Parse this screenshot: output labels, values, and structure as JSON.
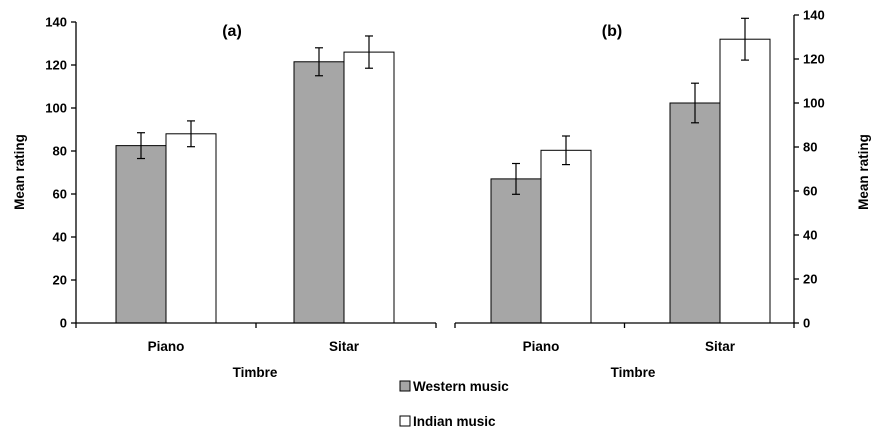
{
  "chart_data": [
    {
      "type": "bar",
      "panel_label": "(a)",
      "categories": [
        "Piano",
        "Sitar"
      ],
      "series": [
        {
          "name": "Western music",
          "values": [
            82.5,
            121.5
          ],
          "errors": [
            6,
            6.5
          ],
          "color": "#a6a6a6"
        },
        {
          "name": "Indian music",
          "values": [
            88,
            126
          ],
          "errors": [
            6,
            7.5
          ],
          "color": "#ffffff"
        }
      ],
      "xlabel": "Timbre",
      "ylabel": "Mean rating",
      "ylim": [
        0,
        140
      ],
      "yticks": [
        "0",
        "20",
        "40",
        "60",
        "80",
        "100",
        "120",
        "140"
      ],
      "y_axis_side": "left",
      "grid": false
    },
    {
      "type": "bar",
      "panel_label": "(b)",
      "categories": [
        "Piano",
        "Sitar"
      ],
      "series": [
        {
          "name": "Western music",
          "values": [
            65.5,
            100
          ],
          "errors": [
            7,
            9
          ],
          "color": "#a6a6a6"
        },
        {
          "name": "Indian music",
          "values": [
            78.5,
            129
          ],
          "errors": [
            6.5,
            9.5
          ],
          "color": "#ffffff"
        }
      ],
      "xlabel": "Timbre",
      "ylabel": "Mean rating",
      "ylim": [
        0,
        140
      ],
      "yticks": [
        "0",
        "20",
        "40",
        "60",
        "80",
        "100",
        "120",
        "140"
      ],
      "y_axis_side": "right",
      "grid": false
    }
  ],
  "legend": {
    "placement": "bottom-center",
    "items": [
      {
        "label": "Western music",
        "color": "#a6a6a6"
      },
      {
        "label": "Indian music",
        "color": "#ffffff"
      }
    ]
  }
}
